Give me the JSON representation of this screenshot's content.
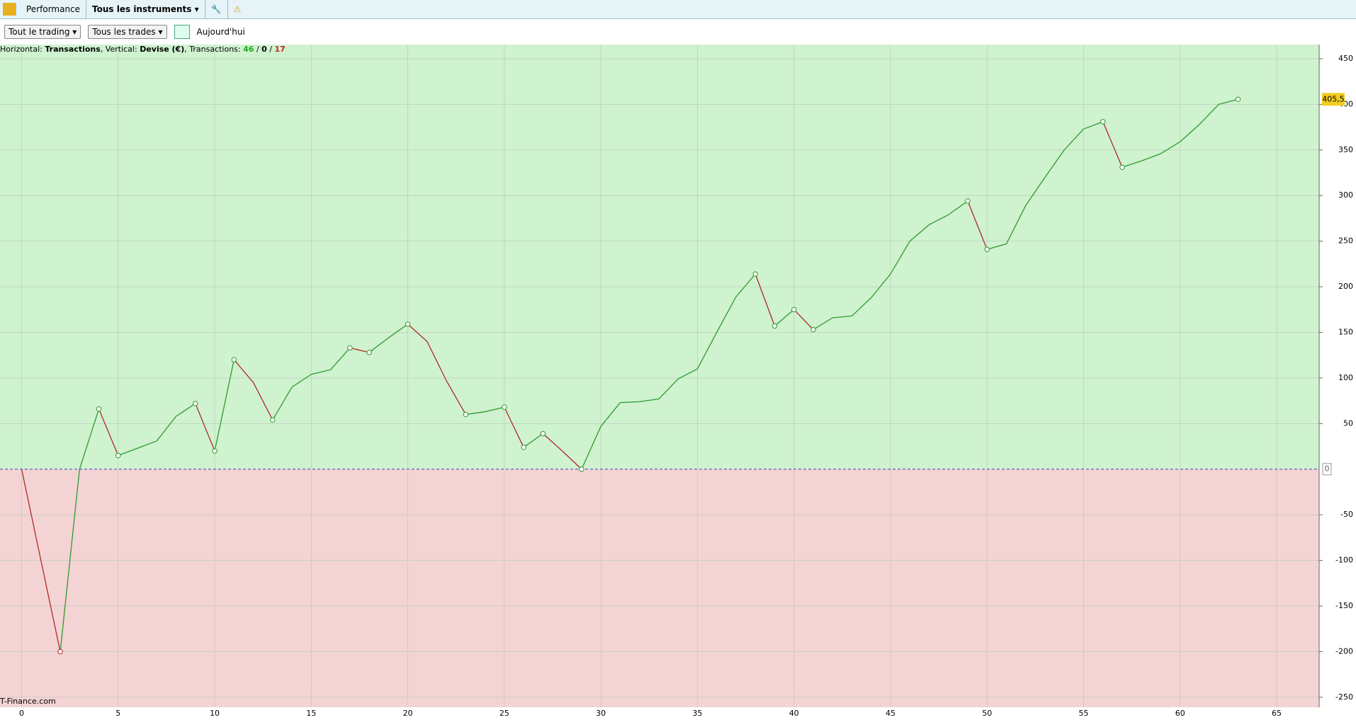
{
  "toolbar": {
    "tab": "Performance",
    "instrument": "Tous les instruments",
    "filter_trading": "Tout le trading",
    "filter_trades": "Tous les trades",
    "date": "Aujourd'hui"
  },
  "info": {
    "horizontal_label": "Horizontal:",
    "horizontal_value": "Transactions",
    "vertical_label": ", Vertical:",
    "vertical_value": "Devise (€)",
    "count_label": ", Transactions:",
    "wins": 46,
    "even": 0,
    "losses": 17,
    "separator": "/"
  },
  "watermark": "T-Finance.com",
  "chart_data": {
    "type": "line",
    "x": [
      0,
      1,
      2,
      3,
      4,
      5,
      6,
      7,
      8,
      9,
      10,
      11,
      12,
      13,
      14,
      15,
      16,
      17,
      18,
      19,
      20,
      21,
      22,
      23,
      24,
      25,
      26,
      27,
      28,
      29,
      30,
      31,
      32,
      33,
      34,
      35,
      36,
      37,
      38,
      39,
      40,
      41,
      42,
      43,
      44,
      45,
      46,
      47,
      48,
      49,
      50,
      51,
      52,
      53,
      54,
      55,
      56,
      57,
      58,
      59,
      60,
      61,
      62,
      63
    ],
    "values": [
      0,
      -100,
      -200,
      0,
      66,
      15,
      23,
      31,
      58,
      72,
      20,
      120,
      95,
      54,
      90,
      104,
      109,
      133,
      128,
      144,
      159,
      140,
      97,
      60,
      63,
      68,
      24,
      39,
      20,
      0,
      47,
      73,
      74,
      77,
      99,
      110,
      150,
      189,
      214,
      157,
      175,
      153,
      166,
      168,
      188,
      214,
      250,
      268,
      279,
      294,
      241,
      247,
      289,
      320,
      350,
      373,
      381,
      331,
      338,
      346,
      359,
      378,
      400,
      405.5
    ],
    "last_value_label": "405,5",
    "zero_label": "0",
    "up_color": "#2f9a2f",
    "down_color": "#b02a2a",
    "positive_fill": "#cff2cf",
    "negative_fill": "#f3d3d3",
    "xlim": [
      -1.12,
      67.2
    ],
    "ylim": [
      -261,
      465.5
    ],
    "xticks": [
      0,
      5,
      10,
      15,
      20,
      25,
      30,
      35,
      40,
      45,
      50,
      55,
      60,
      65
    ],
    "yticks": [
      -250,
      -200,
      -150,
      -100,
      -50,
      50,
      100,
      150,
      200,
      250,
      300,
      350,
      400,
      450
    ],
    "grid": true
  }
}
